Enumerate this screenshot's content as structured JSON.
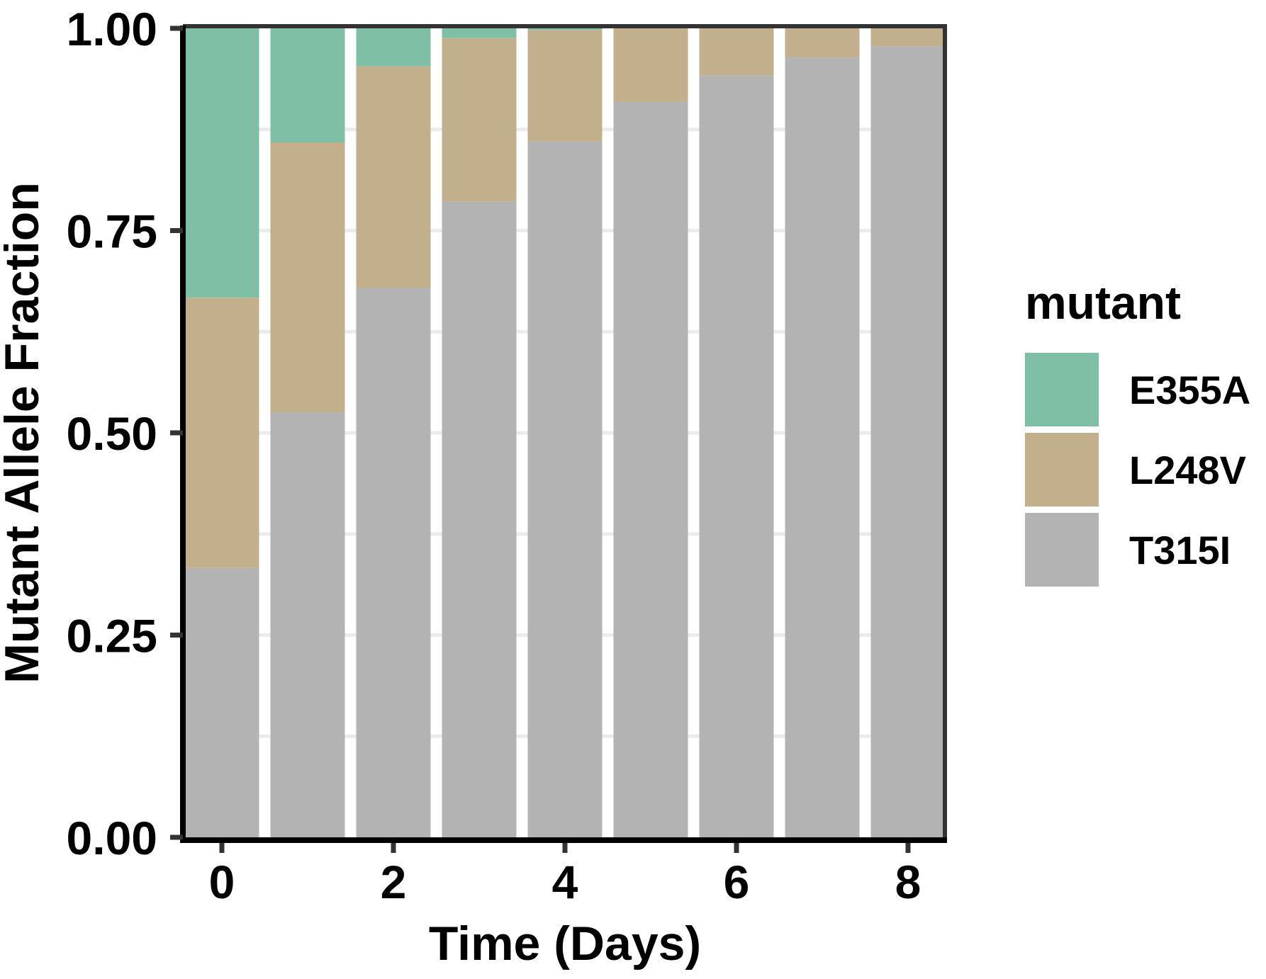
{
  "chart_data": {
    "type": "bar",
    "stacked": true,
    "title": "",
    "xlabel": "Time (Days)",
    "ylabel": "Mutant Allele Fraction",
    "x": [
      0,
      1,
      2,
      3,
      4,
      5,
      6,
      7,
      8
    ],
    "x_ticks": [
      "0",
      "2",
      "4",
      "6",
      "8"
    ],
    "x_tick_values": [
      0,
      2,
      4,
      6,
      8
    ],
    "y_ticks": [
      "0.00",
      "0.25",
      "0.50",
      "0.75",
      "1.00"
    ],
    "y_tick_values": [
      0,
      0.25,
      0.5,
      0.75,
      1.0
    ],
    "ylim": [
      0,
      1
    ],
    "xlim": [
      -0.5,
      8.5
    ],
    "grid": true,
    "legend_title": "mutant",
    "legend_position": "right",
    "series": [
      {
        "name": "T315I",
        "color": "#b3b3b3",
        "values": [
          0.333,
          0.525,
          0.679,
          0.786,
          0.86,
          0.909,
          0.942,
          0.964,
          0.978
        ]
      },
      {
        "name": "L248V",
        "color": "#c2b08d",
        "values": [
          0.334,
          0.334,
          0.274,
          0.202,
          0.138,
          0.091,
          0.058,
          0.036,
          0.022
        ]
      },
      {
        "name": "E355A",
        "color": "#7fbfa6",
        "values": [
          0.333,
          0.141,
          0.047,
          0.012,
          0.002,
          0.0,
          0.0,
          0.0,
          0.0
        ]
      }
    ]
  },
  "legend": {
    "title": "mutant",
    "items": [
      {
        "label": "E355A",
        "color": "#7fbfa6"
      },
      {
        "label": "L248V",
        "color": "#c2b08d"
      },
      {
        "label": "T315I",
        "color": "#b3b3b3"
      }
    ]
  },
  "axes": {
    "x_title": "Time (Days)",
    "y_title": "Mutant Allele Fraction"
  }
}
